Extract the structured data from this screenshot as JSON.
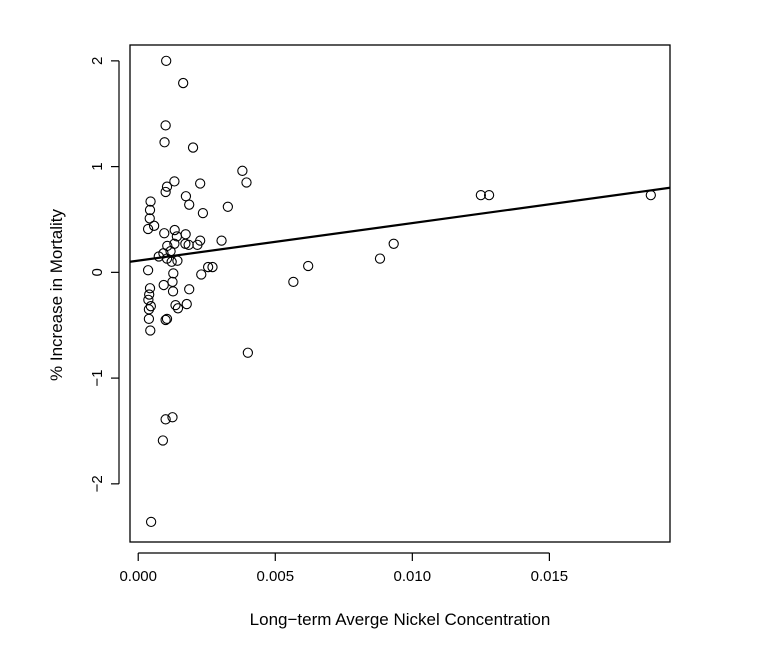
{
  "chart_data": {
    "type": "scatter",
    "title": "",
    "xlabel": "Long−term Averge Nickel Concentration",
    "ylabel": "% Increase in Mortality",
    "xlim": [
      -0.0003,
      0.0194
    ],
    "ylim": [
      -2.55,
      2.15
    ],
    "x_ticks": [
      0.0,
      0.005,
      0.01,
      0.015
    ],
    "x_tick_labels": [
      "0.000",
      "0.005",
      "0.010",
      "0.015"
    ],
    "y_ticks": [
      -2,
      -1,
      0,
      1,
      2
    ],
    "y_tick_labels": [
      "−2",
      "−1",
      "0",
      "1",
      "2"
    ],
    "grid": false,
    "marker": "open-circle",
    "colors": {
      "points": "#000000",
      "line": "#000000",
      "frame": "#000000"
    },
    "points": [
      {
        "x": 0.00102,
        "y": 2.0
      },
      {
        "x": 0.00164,
        "y": 1.79
      },
      {
        "x": 0.001,
        "y": 1.39
      },
      {
        "x": 0.00096,
        "y": 1.23
      },
      {
        "x": 0.002,
        "y": 1.18
      },
      {
        "x": 0.0038,
        "y": 0.96
      },
      {
        "x": 0.00395,
        "y": 0.85
      },
      {
        "x": 0.00132,
        "y": 0.86
      },
      {
        "x": 0.00105,
        "y": 0.81
      },
      {
        "x": 0.001,
        "y": 0.76
      },
      {
        "x": 0.00226,
        "y": 0.84
      },
      {
        "x": 0.00174,
        "y": 0.72
      },
      {
        "x": 0.00186,
        "y": 0.64
      },
      {
        "x": 0.00327,
        "y": 0.62
      },
      {
        "x": 0.00045,
        "y": 0.67
      },
      {
        "x": 0.00043,
        "y": 0.59
      },
      {
        "x": 0.00236,
        "y": 0.56
      },
      {
        "x": 0.00042,
        "y": 0.51
      },
      {
        "x": 0.00058,
        "y": 0.44
      },
      {
        "x": 0.00036,
        "y": 0.41
      },
      {
        "x": 0.00095,
        "y": 0.37
      },
      {
        "x": 0.00133,
        "y": 0.4
      },
      {
        "x": 0.00141,
        "y": 0.34
      },
      {
        "x": 0.00173,
        "y": 0.36
      },
      {
        "x": 0.00132,
        "y": 0.27
      },
      {
        "x": 0.00106,
        "y": 0.25
      },
      {
        "x": 0.00172,
        "y": 0.27
      },
      {
        "x": 0.00184,
        "y": 0.26
      },
      {
        "x": 0.00216,
        "y": 0.26
      },
      {
        "x": 0.00226,
        "y": 0.3
      },
      {
        "x": 0.00304,
        "y": 0.3
      },
      {
        "x": 0.00092,
        "y": 0.18
      },
      {
        "x": 0.00118,
        "y": 0.2
      },
      {
        "x": 0.00105,
        "y": 0.13
      },
      {
        "x": 0.00075,
        "y": 0.15
      },
      {
        "x": 0.00122,
        "y": 0.1
      },
      {
        "x": 0.00143,
        "y": 0.11
      },
      {
        "x": 0.00036,
        "y": 0.02
      },
      {
        "x": 0.00128,
        "y": -0.01
      },
      {
        "x": 0.0023,
        "y": -0.02
      },
      {
        "x": 0.00255,
        "y": 0.05
      },
      {
        "x": 0.00271,
        "y": 0.05
      },
      {
        "x": 0.00043,
        "y": -0.15
      },
      {
        "x": 0.00093,
        "y": -0.12
      },
      {
        "x": 0.00125,
        "y": -0.09
      },
      {
        "x": 0.0004,
        "y": -0.21
      },
      {
        "x": 0.00127,
        "y": -0.18
      },
      {
        "x": 0.00186,
        "y": -0.16
      },
      {
        "x": 0.00037,
        "y": -0.26
      },
      {
        "x": 0.00046,
        "y": -0.32
      },
      {
        "x": 0.00039,
        "y": -0.35
      },
      {
        "x": 0.00136,
        "y": -0.31
      },
      {
        "x": 0.00145,
        "y": -0.34
      },
      {
        "x": 0.00177,
        "y": -0.3
      },
      {
        "x": 0.00039,
        "y": -0.44
      },
      {
        "x": 0.001,
        "y": -0.45
      },
      {
        "x": 0.00105,
        "y": -0.44
      },
      {
        "x": 0.00044,
        "y": -0.55
      },
      {
        "x": 0.004,
        "y": -0.76
      },
      {
        "x": 0.001,
        "y": -1.39
      },
      {
        "x": 0.00125,
        "y": -1.37
      },
      {
        "x": 0.0009,
        "y": -1.59
      },
      {
        "x": 0.00047,
        "y": -2.36
      },
      {
        "x": 0.00566,
        "y": -0.09
      },
      {
        "x": 0.0062,
        "y": 0.06
      },
      {
        "x": 0.00882,
        "y": 0.13
      },
      {
        "x": 0.00932,
        "y": 0.27
      },
      {
        "x": 0.0125,
        "y": 0.73
      },
      {
        "x": 0.0128,
        "y": 0.73
      },
      {
        "x": 0.0187,
        "y": 0.73
      }
    ],
    "fit_line": {
      "x": [
        -0.0003,
        0.0194
      ],
      "y": [
        0.1,
        0.8
      ]
    }
  }
}
